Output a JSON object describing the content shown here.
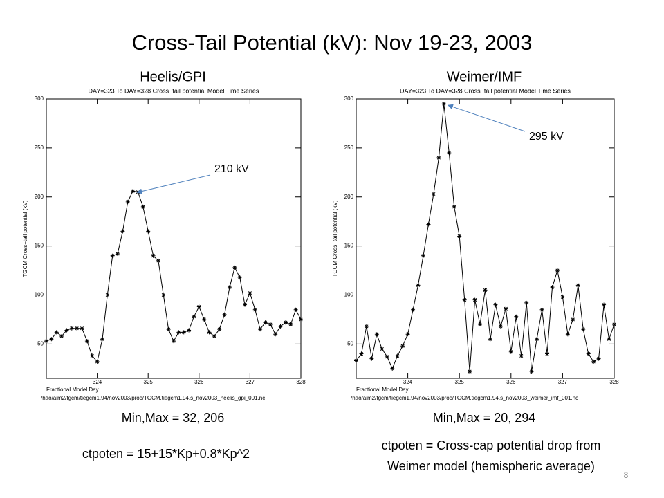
{
  "title": "Cross-Tail Potential (kV): Nov 19-23, 2003",
  "page_number": "8",
  "chart_data": [
    {
      "type": "line",
      "panel_title": "Heelis/GPI",
      "title": "DAY=323 To DAY=328 Cross−tail potential Model Time Series",
      "ylabel": "TGCM Cross−tail potential (kV)",
      "xlabel": "Fractional Model Day",
      "source": "/hao/aim2/tgcm/tiegcm1.94/nov2003/proc/TGCM.tiegcm1.94.s_nov2003_heelis_gpi_001.nc",
      "annotation": "210 kV",
      "stats": "Min,Max =  32, 206",
      "note": [
        "ctpoten = 15+15*Kp+0.8*Kp^2"
      ],
      "xlim": [
        323,
        328
      ],
      "ylim": [
        15,
        300
      ],
      "xticks": [
        324,
        325,
        326,
        327,
        328
      ],
      "yticks": [
        50,
        100,
        150,
        200,
        250,
        300
      ],
      "x": [
        323.0,
        323.1,
        323.2,
        323.3,
        323.4,
        323.5,
        323.6,
        323.7,
        323.8,
        323.9,
        324.0,
        324.1,
        324.2,
        324.3,
        324.4,
        324.5,
        324.6,
        324.7,
        324.8,
        324.9,
        325.0,
        325.1,
        325.2,
        325.3,
        325.4,
        325.5,
        325.6,
        325.7,
        325.8,
        325.9,
        326.0,
        326.1,
        326.2,
        326.3,
        326.4,
        326.5,
        326.6,
        326.7,
        326.8,
        326.9,
        327.0,
        327.1,
        327.2,
        327.3,
        327.4,
        327.5,
        327.6,
        327.7,
        327.8,
        327.9,
        328.0
      ],
      "series": [
        {
          "color": "#000000",
          "values": [
            53,
            55,
            62,
            58,
            64,
            66,
            66,
            66,
            53,
            38,
            32,
            55,
            100,
            140,
            142,
            165,
            195,
            206,
            205,
            190,
            165,
            140,
            135,
            100,
            65,
            53,
            62,
            62,
            64,
            78,
            88,
            75,
            62,
            58,
            65,
            80,
            108,
            128,
            118,
            90,
            102,
            85,
            65,
            72,
            70,
            60,
            68,
            72,
            70,
            85,
            75
          ]
        }
      ]
    },
    {
      "type": "line",
      "panel_title": "Weimer/IMF",
      "title": "DAY=323 To DAY=328 Cross−tail potential Model Time Series",
      "ylabel": "TGCM Cross−tail potential (kV)",
      "xlabel": "Fractional Model Day",
      "source": "/hao/aim2/tgcm/tiegcm1.94/nov2003/proc/TGCM.tiegcm1.94.s_nov2003_weimer_imf_001.nc",
      "annotation": "295 kV",
      "stats": "Min,Max =  20, 294",
      "note": [
        "ctpoten = Cross-cap potential drop from",
        "Weimer model (hemispheric average)"
      ],
      "xlim": [
        323,
        328
      ],
      "ylim": [
        15,
        300
      ],
      "xticks": [
        324,
        325,
        326,
        327,
        328
      ],
      "yticks": [
        50,
        100,
        150,
        200,
        250,
        300
      ],
      "x": [
        323.0,
        323.1,
        323.2,
        323.3,
        323.4,
        323.5,
        323.6,
        323.7,
        323.8,
        323.9,
        324.0,
        324.1,
        324.2,
        324.3,
        324.4,
        324.5,
        324.6,
        324.7,
        324.8,
        324.9,
        325.0,
        325.1,
        325.2,
        325.3,
        325.4,
        325.5,
        325.6,
        325.7,
        325.8,
        325.9,
        326.0,
        326.1,
        326.2,
        326.3,
        326.4,
        326.5,
        326.6,
        326.7,
        326.8,
        326.9,
        327.0,
        327.1,
        327.2,
        327.3,
        327.4,
        327.5,
        327.6,
        327.7,
        327.8,
        327.9,
        328.0
      ],
      "series": [
        {
          "color": "#000000",
          "values": [
            33,
            40,
            68,
            35,
            60,
            45,
            37,
            25,
            38,
            48,
            60,
            85,
            110,
            140,
            172,
            203,
            240,
            295,
            245,
            190,
            160,
            95,
            22,
            95,
            70,
            105,
            55,
            90,
            68,
            86,
            42,
            78,
            38,
            92,
            22,
            55,
            85,
            40,
            108,
            125,
            98,
            60,
            75,
            110,
            65,
            40,
            32,
            35,
            90,
            55,
            70
          ]
        }
      ]
    }
  ]
}
